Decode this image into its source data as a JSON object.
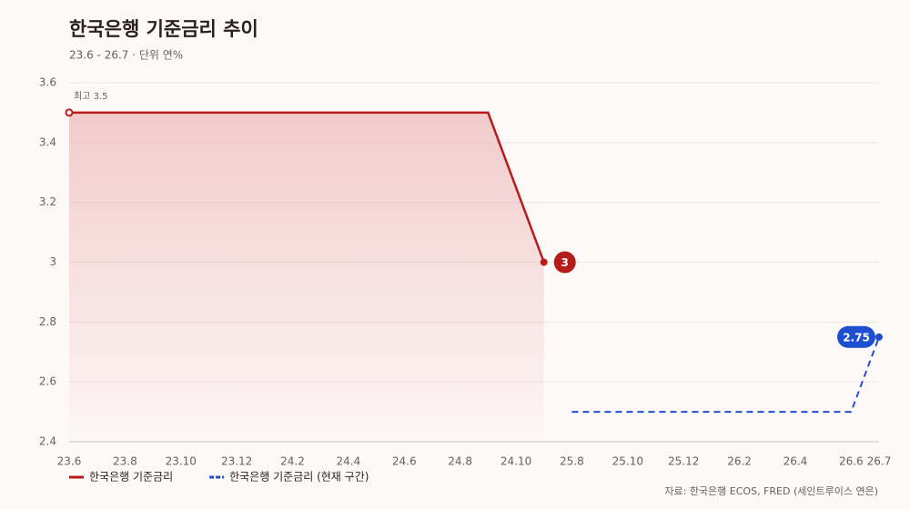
{
  "chart_data": {
    "type": "line",
    "title": "한국은행 기준금리 추이",
    "subtitle": "23.6 - 26.7 · 단위 연%",
    "source": "자료: 한국은행 ECOS, FRED (세인트루이스 연은)",
    "annotation": "최고 3.5",
    "categories": [
      "23.6",
      null,
      "23.8",
      null,
      "23.10",
      null,
      "23.12",
      null,
      "24.2",
      null,
      "24.4",
      null,
      "24.6",
      null,
      "24.8",
      null,
      "24.10",
      null,
      "25.8",
      null,
      "25.10",
      null,
      "25.12",
      null,
      "26.2",
      null,
      "26.4",
      null,
      "26.6",
      "26.7"
    ],
    "series": [
      {
        "name": "한국은행 기준금리",
        "color": "#b71c1c",
        "values": [
          3.5,
          3.5,
          3.5,
          3.5,
          3.5,
          3.5,
          3.5,
          3.5,
          3.5,
          3.5,
          3.5,
          3.5,
          3.5,
          3.5,
          3.5,
          3.5,
          3.25,
          3,
          null,
          null,
          null,
          null,
          null,
          null,
          null,
          null,
          null,
          null,
          null,
          null
        ]
      },
      {
        "name": "한국은행 기준금리 (현재 구간)",
        "color": "#1f4fd1",
        "dashed": true,
        "values": [
          null,
          null,
          null,
          null,
          null,
          null,
          null,
          null,
          null,
          null,
          null,
          null,
          null,
          null,
          null,
          null,
          null,
          null,
          2.5,
          2.5,
          2.5,
          2.5,
          2.5,
          2.5,
          2.5,
          2.5,
          2.5,
          2.5,
          2.5,
          2.75
        ]
      }
    ],
    "ylim": [
      2.4,
      3.6
    ],
    "yticks": [
      2.4,
      2.6,
      2.8,
      3,
      3.2,
      3.4,
      3.6
    ],
    "grid": true,
    "legend": "bottom-left"
  }
}
